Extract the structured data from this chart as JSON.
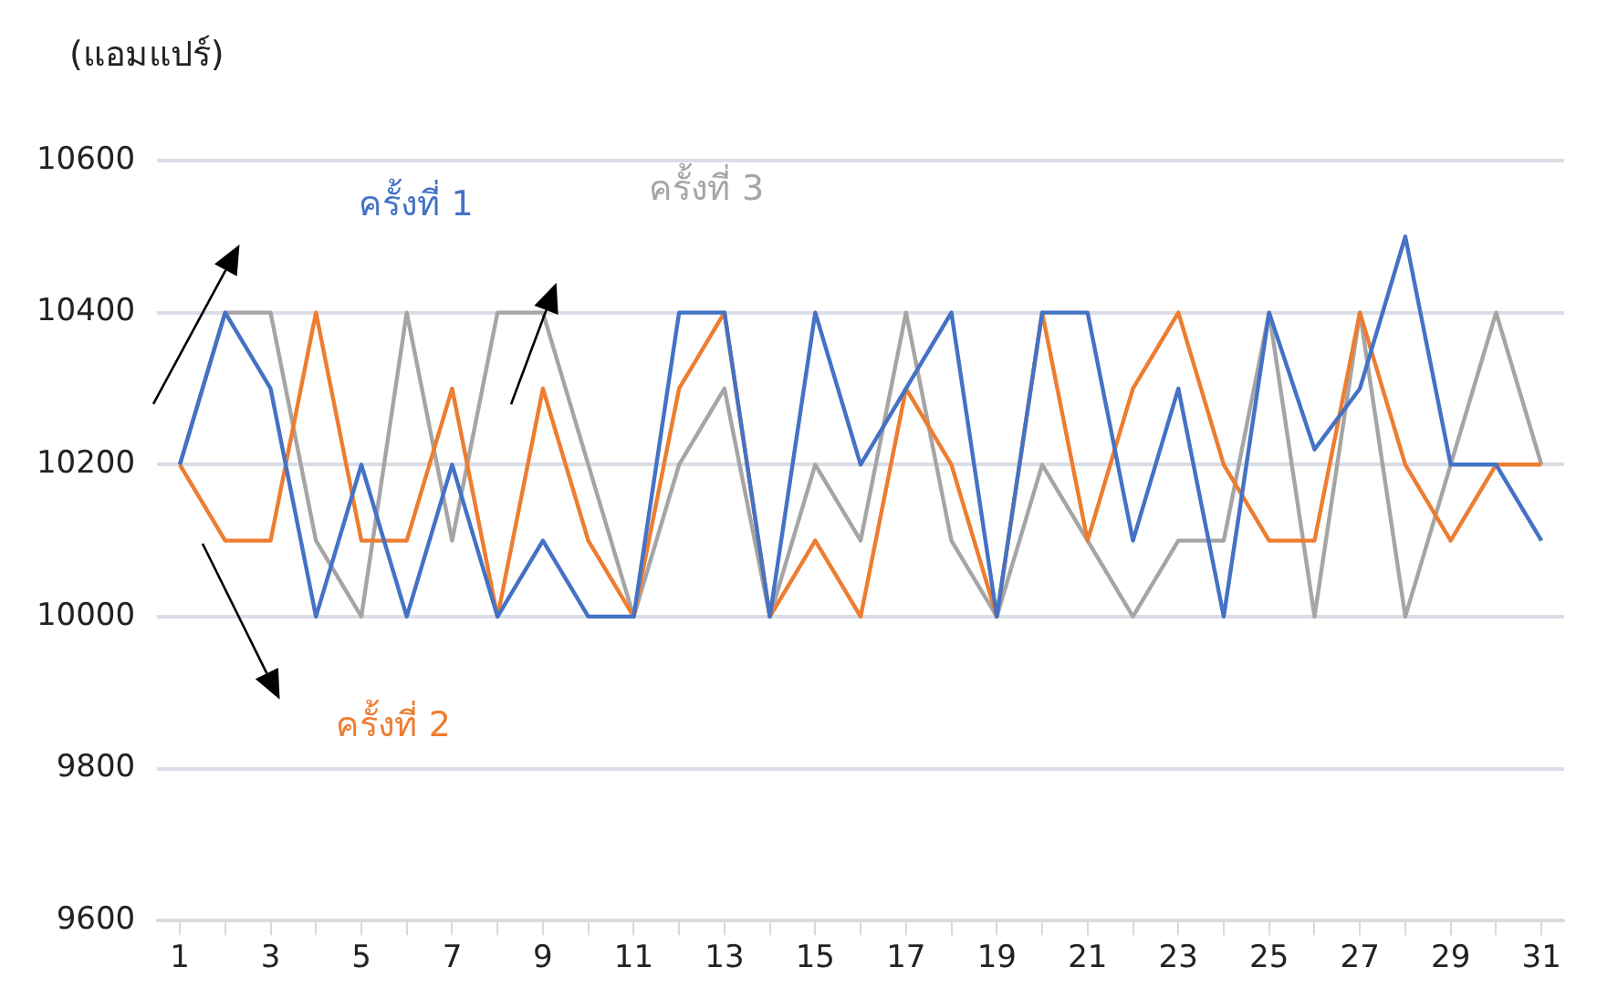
{
  "chart_data": {
    "type": "line",
    "ylabel": "(แอมแปร์)",
    "x": [
      1,
      2,
      3,
      4,
      5,
      6,
      7,
      8,
      9,
      10,
      11,
      12,
      13,
      14,
      15,
      16,
      17,
      18,
      19,
      20,
      21,
      22,
      23,
      24,
      25,
      26,
      27,
      28,
      29,
      30,
      31
    ],
    "xlim": [
      0.5,
      31.5
    ],
    "xticks": [
      1,
      {
        "value": 2,
        "label": null
      },
      3,
      {
        "value": 4,
        "label": null
      },
      5,
      {
        "value": 6,
        "label": null
      },
      7,
      {
        "value": 8,
        "label": null
      },
      9,
      {
        "value": 10,
        "label": null
      },
      11,
      {
        "value": 12,
        "label": null
      },
      13,
      {
        "value": 14,
        "label": null
      },
      15,
      {
        "value": 16,
        "label": null
      },
      17,
      {
        "value": 18,
        "label": null
      },
      19,
      {
        "value": 20,
        "label": null
      },
      21,
      {
        "value": 22,
        "label": null
      },
      23,
      {
        "value": 24,
        "label": null
      },
      25,
      {
        "value": 26,
        "label": null
      },
      27,
      {
        "value": 28,
        "label": null
      },
      29,
      {
        "value": 30,
        "label": null
      },
      31
    ],
    "series": [
      {
        "name": "ครั้งที่ 1",
        "color": "#4472c4",
        "values": [
          10200,
          10400,
          10300,
          10000,
          10200,
          10000,
          10200,
          10000,
          10100,
          10000,
          10000,
          10400,
          10400,
          10000,
          10400,
          10200,
          10300,
          10400,
          10000,
          10400,
          10400,
          10100,
          10300,
          10000,
          10400,
          10220,
          10300,
          10500,
          10200,
          10200,
          10100
        ]
      },
      {
        "name": "ครั้งที่ 2",
        "color": "#ed7d31",
        "values": [
          10200,
          10100,
          10100,
          10400,
          10100,
          10100,
          10300,
          10000,
          10300,
          10100,
          10000,
          10300,
          10400,
          10000,
          10100,
          10000,
          10300,
          10200,
          10000,
          10400,
          10100,
          10300,
          10400,
          10200,
          10100,
          10100,
          10400,
          10200,
          10100,
          10200,
          10200
        ]
      },
      {
        "name": "ครั้งที่ 3",
        "color": "#a5a5a5",
        "values": [
          10200,
          10400,
          10400,
          10100,
          10000,
          10400,
          10100,
          10400,
          10400,
          10200,
          10000,
          10200,
          10300,
          10000,
          10200,
          10100,
          10400,
          10100,
          10000,
          10200,
          10100,
          10000,
          10100,
          10100,
          10400,
          10000,
          10400,
          10000,
          10200,
          10400,
          10200
        ]
      }
    ],
    "ylim": [
      9600,
      10600
    ],
    "yticks": [
      9600,
      9800,
      10000,
      10200,
      10400,
      10600
    ],
    "grid": "y",
    "legend": false,
    "marker": "none",
    "line_style": "solid"
  }
}
